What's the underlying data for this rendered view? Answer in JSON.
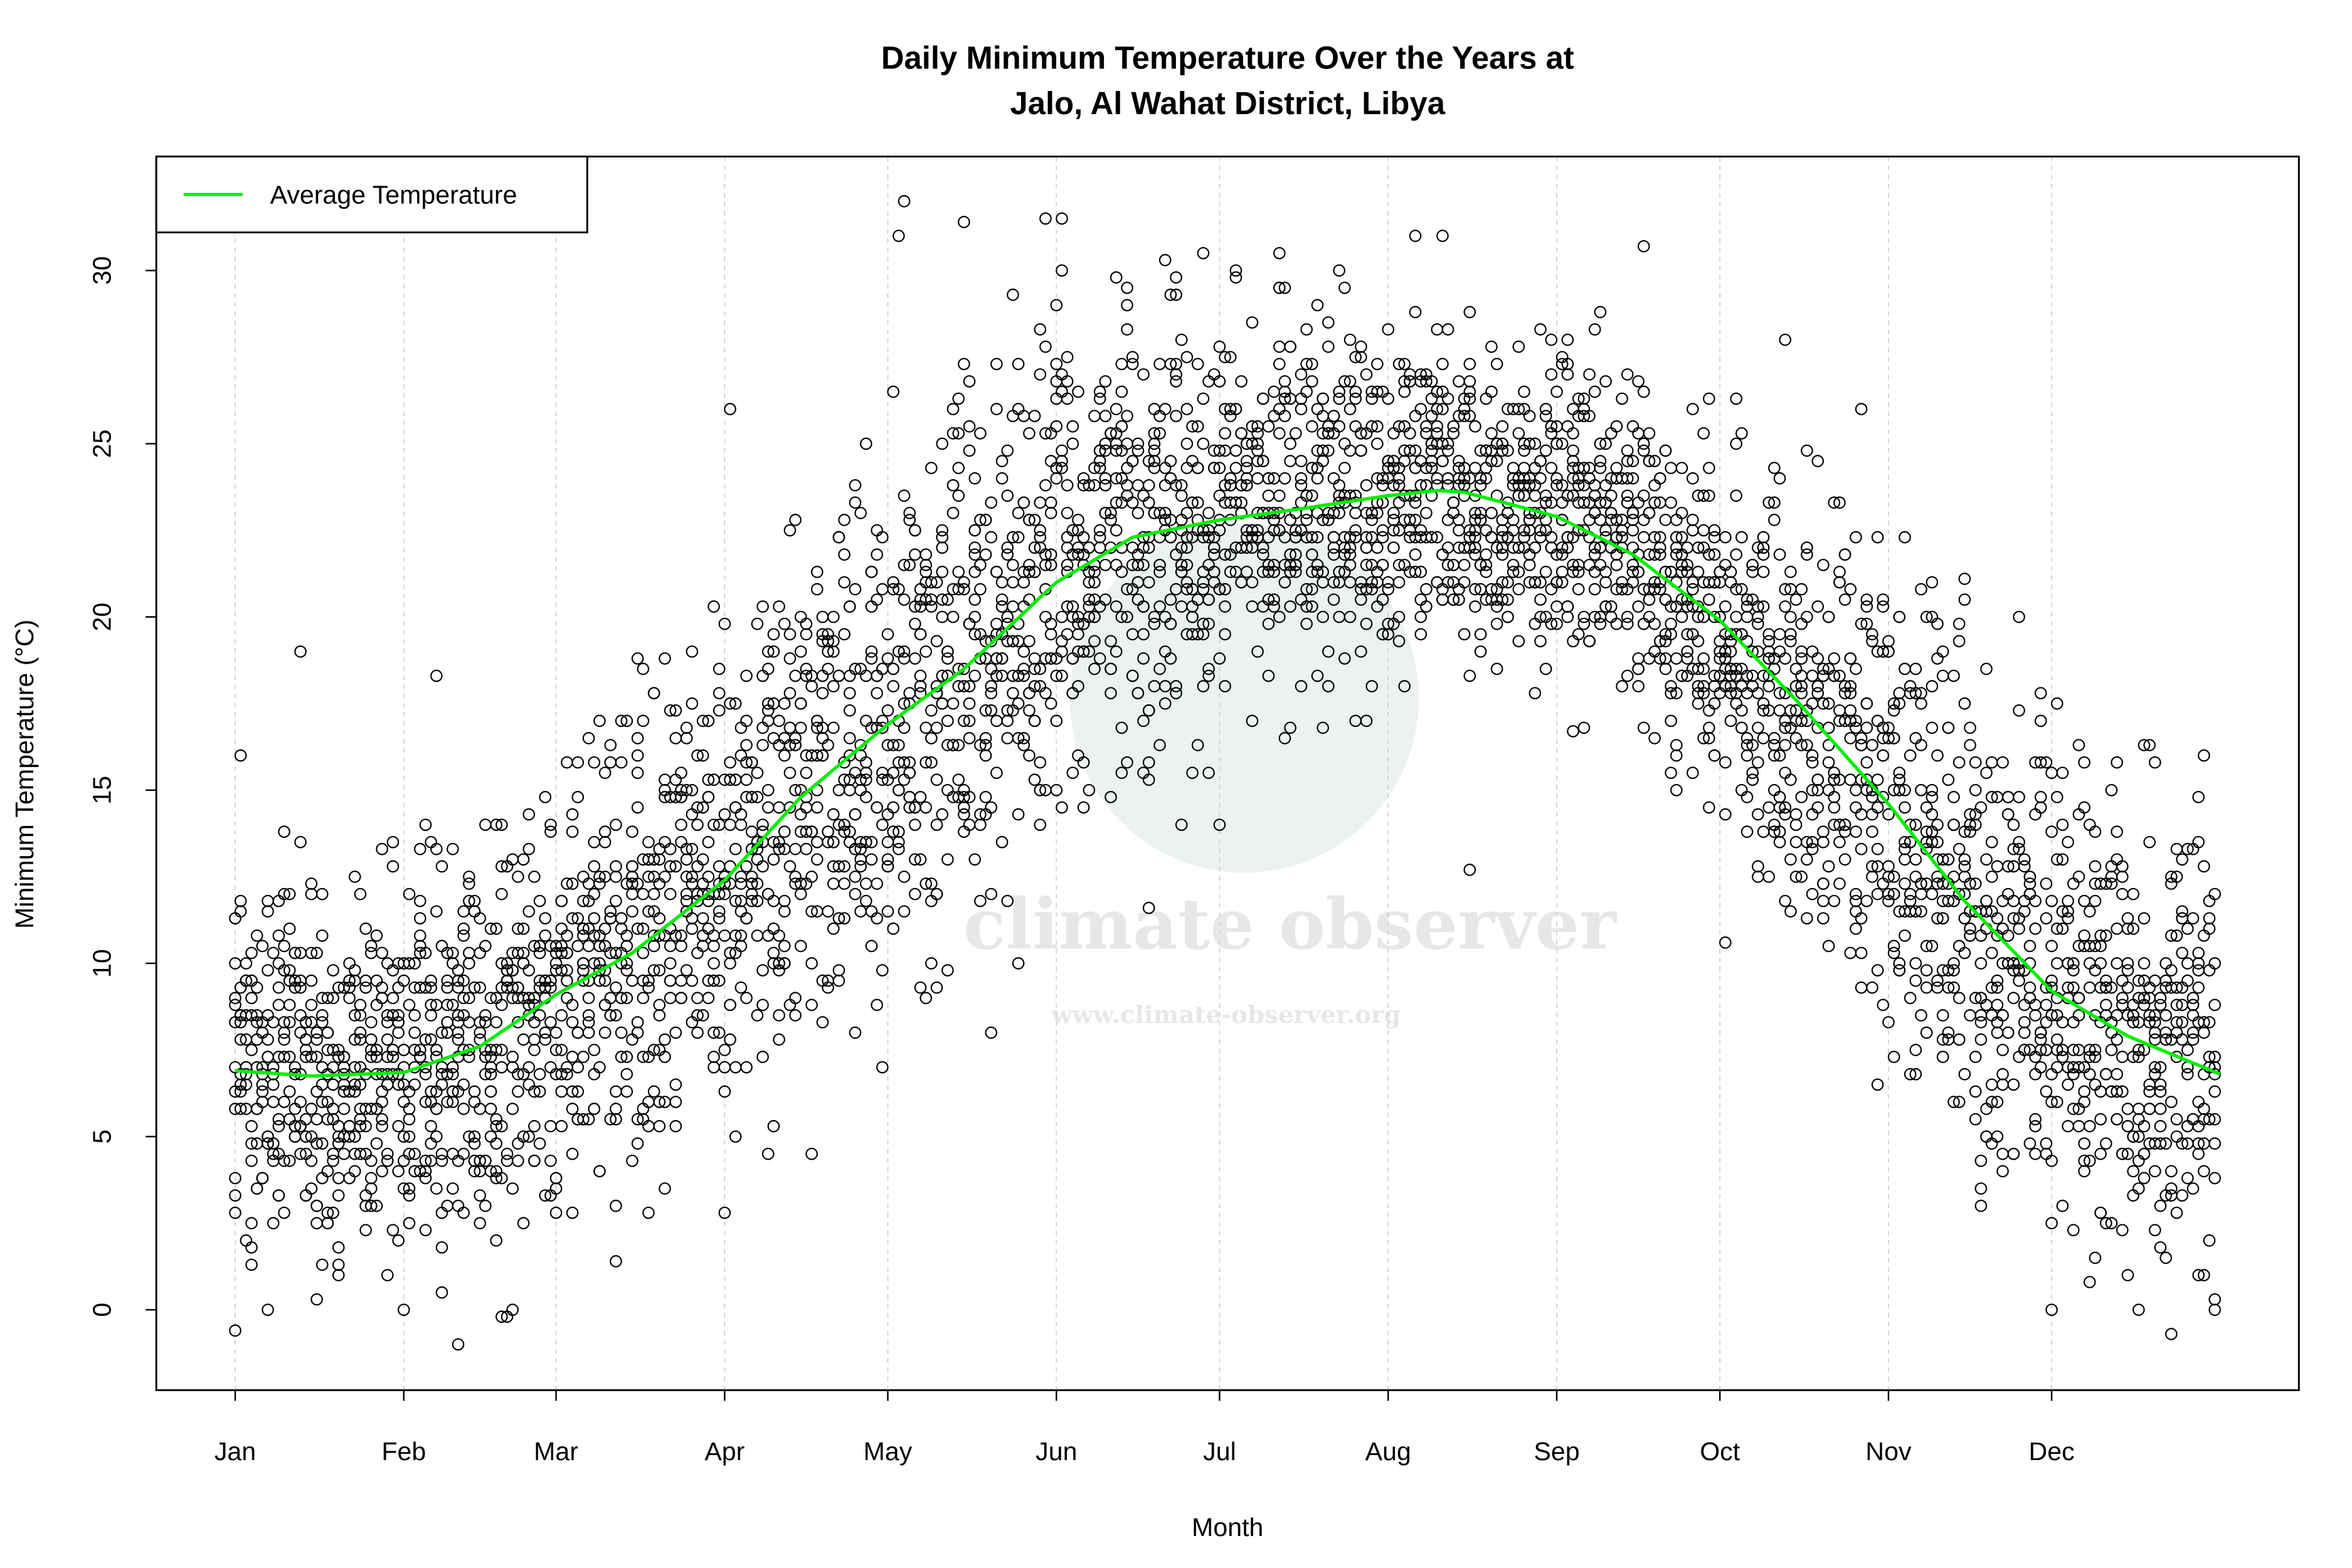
{
  "chart_data": {
    "type": "scatter",
    "title_line1": "Daily Minimum Temperature Over the Years at",
    "title_line2": "Jalo, Al Wahat District, Libya",
    "xlabel": "Month",
    "ylabel": "Minimum Temperature (°C)",
    "x_ticks": [
      {
        "label": "Jan",
        "day": 1
      },
      {
        "label": "Feb",
        "day": 32
      },
      {
        "label": "Mar",
        "day": 60
      },
      {
        "label": "Apr",
        "day": 91
      },
      {
        "label": "May",
        "day": 121
      },
      {
        "label": "Jun",
        "day": 152
      },
      {
        "label": "Jul",
        "day": 182
      },
      {
        "label": "Aug",
        "day": 213
      },
      {
        "label": "Sep",
        "day": 244
      },
      {
        "label": "Oct",
        "day": 274
      },
      {
        "label": "Nov",
        "day": 305
      },
      {
        "label": "Dec",
        "day": 335
      }
    ],
    "xlim_days": [
      1,
      366
    ],
    "y_ticks": [
      0,
      5,
      10,
      15,
      20,
      25,
      30
    ],
    "ylim": [
      -2,
      33
    ],
    "grid": "vertical dotted at month ticks",
    "legend": {
      "position": "top-left",
      "entries": [
        {
          "name": "Average Temperature",
          "color": "#00ee00"
        }
      ]
    },
    "average_curve": {
      "name": "Average Temperature",
      "color": "#00ee00",
      "days": [
        1,
        15,
        32,
        46,
        60,
        74,
        91,
        105,
        121,
        135,
        152,
        166,
        182,
        196,
        213,
        222,
        227,
        244,
        258,
        274,
        288,
        305,
        319,
        335,
        349,
        366
      ],
      "values": [
        6.9,
        6.75,
        6.85,
        7.6,
        9.1,
        10.3,
        12.4,
        14.8,
        16.9,
        18.5,
        21.0,
        22.3,
        22.8,
        23.1,
        23.5,
        23.65,
        23.6,
        22.9,
        21.8,
        19.9,
        17.6,
        14.6,
        11.8,
        9.2,
        7.9,
        6.8
      ]
    },
    "observed_typical_range_by_month": [
      {
        "month": "Jan",
        "min": 1,
        "max": 14
      },
      {
        "month": "Feb",
        "min": 1,
        "max": 14
      },
      {
        "month": "Mar",
        "min": 3,
        "max": 17
      },
      {
        "month": "Apr",
        "min": 6,
        "max": 22
      },
      {
        "month": "May",
        "min": 9,
        "max": 26
      },
      {
        "month": "Jun",
        "min": 14,
        "max": 29
      },
      {
        "month": "Jul",
        "min": 17,
        "max": 29
      },
      {
        "month": "Aug",
        "min": 19,
        "max": 28
      },
      {
        "month": "Sep",
        "min": 18,
        "max": 28
      },
      {
        "month": "Oct",
        "min": 12,
        "max": 26
      },
      {
        "month": "Nov",
        "min": 6,
        "max": 22
      },
      {
        "month": "Dec",
        "min": 2,
        "max": 16
      }
    ],
    "notable_points": [
      [
        1,
        -0.6
      ],
      [
        2,
        16
      ],
      [
        13,
        19
      ],
      [
        42,
        -1
      ],
      [
        38,
        18.3
      ],
      [
        124,
        32
      ],
      [
        123,
        31
      ],
      [
        135,
        31.4
      ],
      [
        153,
        31.5
      ],
      [
        218,
        31
      ],
      [
        223,
        31
      ],
      [
        260,
        30.7
      ],
      [
        175,
        14
      ],
      [
        228,
        12.7
      ],
      [
        247,
        16.7
      ],
      [
        275,
        10.6
      ],
      [
        335,
        0
      ],
      [
        365,
        0
      ],
      [
        71,
        1.4
      ],
      [
        52,
        0
      ],
      [
        92,
        26
      ],
      [
        169,
        11.6
      ],
      [
        7,
        0
      ],
      [
        286,
        28
      ],
      [
        300,
        26
      ],
      [
        329,
        20
      ],
      [
        319,
        21.1
      ],
      [
        119,
        8.8
      ],
      [
        145,
        10
      ],
      [
        322,
        3
      ],
      [
        362,
        1
      ]
    ],
    "watermark": {
      "name": "climate observer",
      "url": "www.climate-observer.org"
    }
  }
}
